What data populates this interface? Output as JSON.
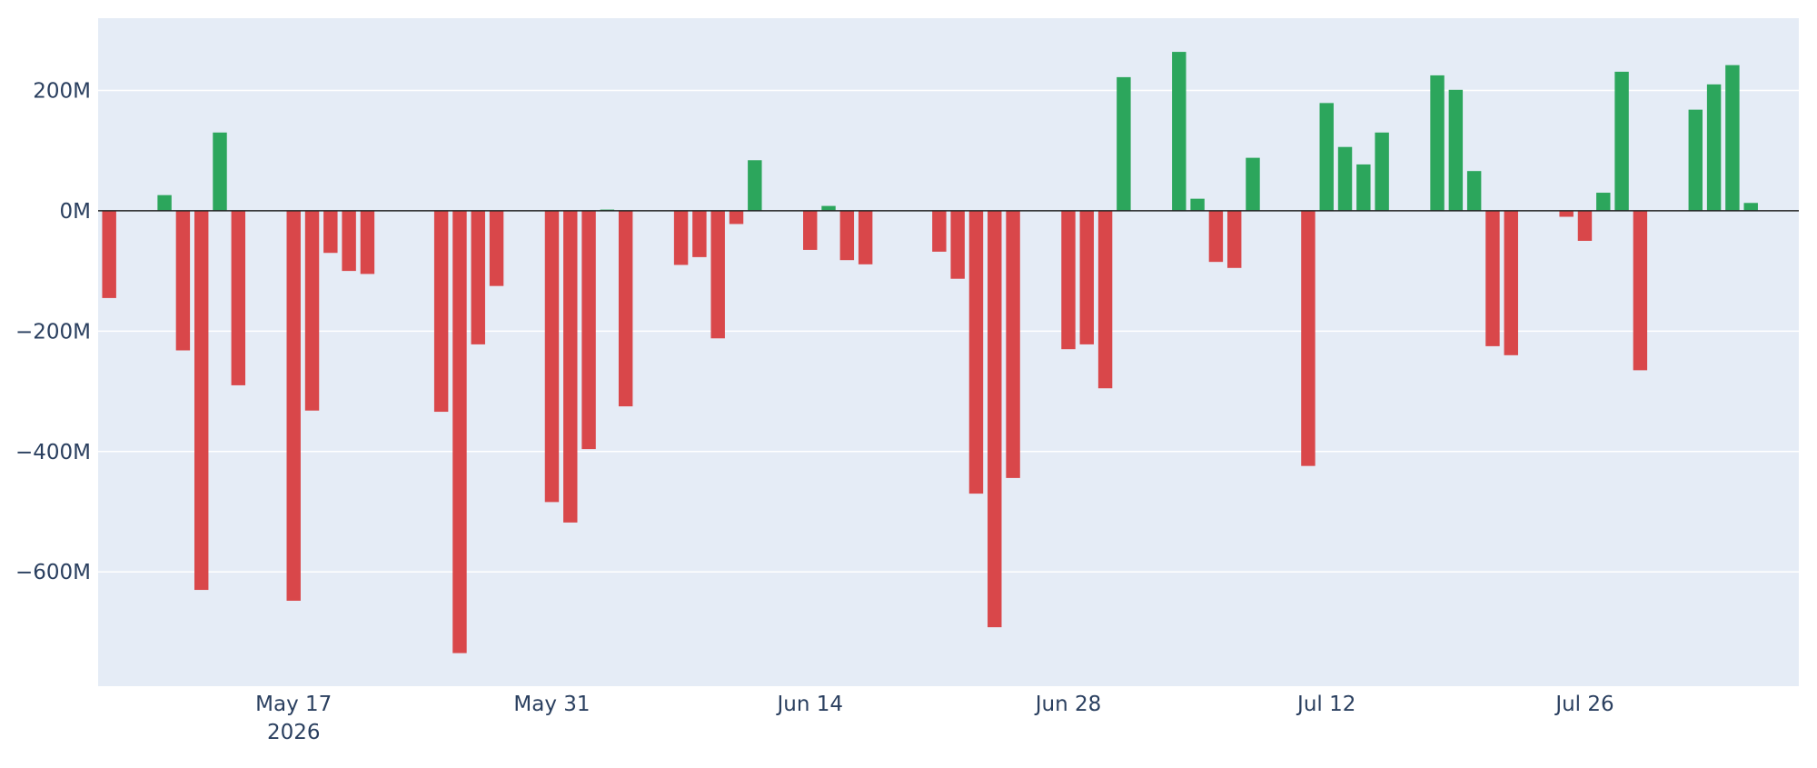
{
  "chart_data": {
    "type": "bar",
    "title": "",
    "xlabel": "",
    "ylabel": "",
    "colors": {
      "positive": "#2ca65c",
      "negative": "#d9474a",
      "plot_background": "#e5ecf6",
      "grid": "#ffffff",
      "zero_line": "#222222",
      "text": "#2a3f5f"
    },
    "grid": true,
    "x_range": [
      "2026-05-07",
      "2026-08-07"
    ],
    "ylim": [
      -790,
      320
    ],
    "y_ticks": [
      {
        "value": 200,
        "label": "200M"
      },
      {
        "value": 0,
        "label": "0M"
      },
      {
        "value": -200,
        "label": "−200M"
      },
      {
        "value": -400,
        "label": "−400M"
      },
      {
        "value": -600,
        "label": "−600M"
      }
    ],
    "x_ticks": [
      {
        "date": "2026-05-17",
        "label": "May 17",
        "sublabel": "2026"
      },
      {
        "date": "2026-05-31",
        "label": "May 31"
      },
      {
        "date": "2026-06-14",
        "label": "Jun 14"
      },
      {
        "date": "2026-06-28",
        "label": "Jun 28"
      },
      {
        "date": "2026-07-12",
        "label": "Jul 12"
      },
      {
        "date": "2026-07-26",
        "label": "Jul 26"
      }
    ],
    "series": [
      {
        "x": [
          "2026-05-07",
          "2026-05-10",
          "2026-05-11",
          "2026-05-12",
          "2026-05-13",
          "2026-05-14",
          "2026-05-17",
          "2026-05-18",
          "2026-05-19",
          "2026-05-20",
          "2026-05-21",
          "2026-05-25",
          "2026-05-26",
          "2026-05-27",
          "2026-05-28",
          "2026-05-31",
          "2026-06-01",
          "2026-06-02",
          "2026-06-03",
          "2026-06-04",
          "2026-06-07",
          "2026-06-08",
          "2026-06-09",
          "2026-06-10",
          "2026-06-11",
          "2026-06-14",
          "2026-06-15",
          "2026-06-16",
          "2026-06-17",
          "2026-06-21",
          "2026-06-22",
          "2026-06-23",
          "2026-06-24",
          "2026-06-25",
          "2026-06-28",
          "2026-06-29",
          "2026-06-30",
          "2026-07-01",
          "2026-07-04",
          "2026-07-05",
          "2026-07-06",
          "2026-07-07",
          "2026-07-08",
          "2026-07-11",
          "2026-07-12",
          "2026-07-13",
          "2026-07-14",
          "2026-07-15",
          "2026-07-18",
          "2026-07-19",
          "2026-07-20",
          "2026-07-21",
          "2026-07-22",
          "2026-07-25",
          "2026-07-26",
          "2026-07-27",
          "2026-07-28",
          "2026-07-29",
          "2026-08-01",
          "2026-08-02",
          "2026-08-03",
          "2026-08-04"
        ],
        "values": [
          -145,
          26,
          -232,
          -630,
          130,
          -290,
          -648,
          -332,
          -70,
          -100,
          -105,
          -334,
          -735,
          -222,
          -125,
          -484,
          -518,
          -396,
          2,
          -325,
          -90,
          -77,
          -212,
          -22,
          84,
          -65,
          8,
          -82,
          -89,
          -68,
          -113,
          -470,
          -692,
          -444,
          -230,
          -222,
          -295,
          222,
          264,
          20,
          -85,
          -95,
          88,
          -424,
          179,
          106,
          77,
          130,
          225,
          201,
          66,
          -225,
          -240,
          -10,
          -50,
          30,
          231,
          -265,
          168,
          210,
          242,
          13
        ]
      }
    ]
  }
}
